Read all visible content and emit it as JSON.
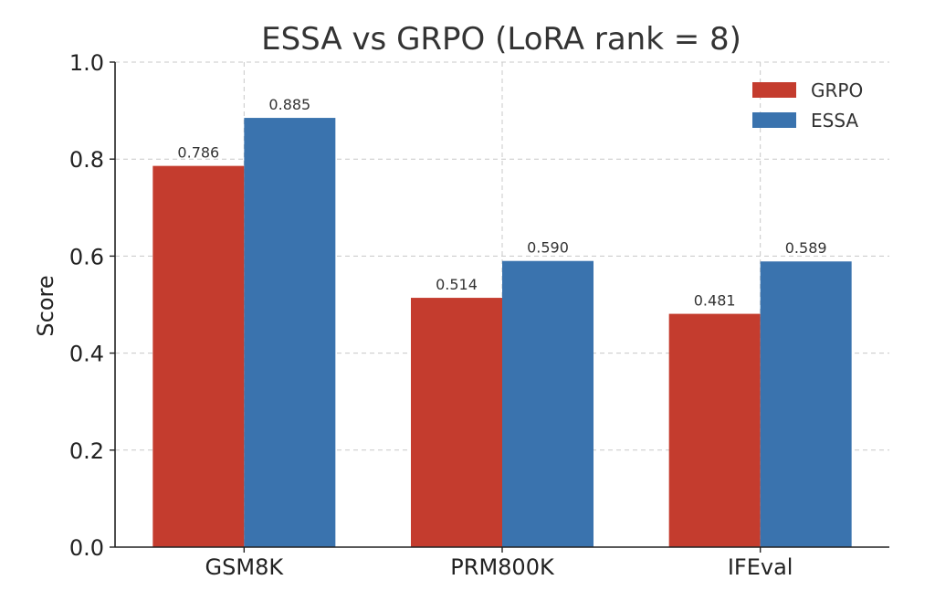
{
  "chart_data": {
    "type": "bar",
    "title": "ESSA vs GRPO (LoRA rank = 8)",
    "xlabel": "",
    "ylabel": "Score",
    "categories": [
      "GSM8K",
      "PRM800K",
      "IFEval"
    ],
    "series": [
      {
        "name": "GRPO",
        "values": [
          0.786,
          0.514,
          0.481
        ],
        "labels": [
          "0.786",
          "0.514",
          "0.481"
        ],
        "color": "#c43c2e"
      },
      {
        "name": "ESSA",
        "values": [
          0.885,
          0.59,
          0.589
        ],
        "labels": [
          "0.885",
          "0.590",
          "0.589"
        ],
        "color": "#3a73ae"
      }
    ],
    "ylim": [
      0,
      1.0
    ],
    "yticks": [
      0.0,
      0.2,
      0.4,
      0.6,
      0.8,
      1.0
    ],
    "ytick_labels": [
      "0.0",
      "0.2",
      "0.4",
      "0.6",
      "0.8",
      "1.0"
    ],
    "grid": true,
    "legend_position": "top-right"
  }
}
